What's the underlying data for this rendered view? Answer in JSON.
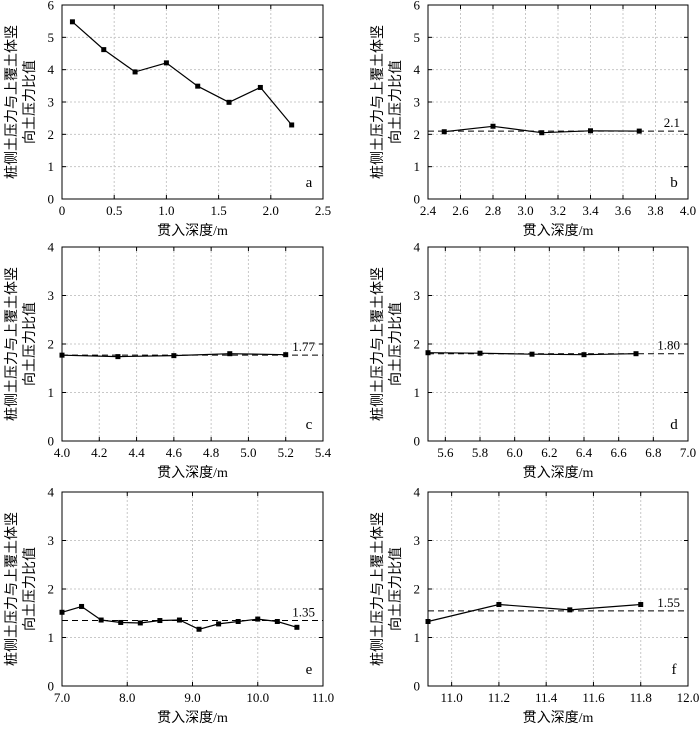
{
  "chart_data": [
    {
      "type": "line",
      "panel_label": "a",
      "xlabel": "贯入深度/m",
      "ylabel": "桩侧土压力与上覆土体竖向土压力比值",
      "xlim": [
        0,
        2.5
      ],
      "ylim": [
        0,
        6
      ],
      "xticks": [
        "0",
        "0.5",
        "1.0",
        "1.5",
        "2.0",
        "2.5"
      ],
      "yticks": [
        "0",
        "1",
        "2",
        "3",
        "4",
        "5",
        "6"
      ],
      "xtick_values": [
        0,
        0.5,
        1.0,
        1.5,
        2.0,
        2.5
      ],
      "ytick_values": [
        0,
        1,
        2,
        3,
        4,
        5,
        6
      ],
      "grid": true,
      "x": [
        0.1,
        0.4,
        0.7,
        1.0,
        1.3,
        1.6,
        1.9,
        2.2
      ],
      "y": [
        5.48,
        4.62,
        3.93,
        4.21,
        3.49,
        2.99,
        3.45,
        2.29
      ],
      "reference_line": null,
      "reference_label": ""
    },
    {
      "type": "line",
      "panel_label": "b",
      "xlabel": "贯入深度/m",
      "ylabel": "桩侧土压力与上覆土体竖向土压力比值",
      "xlim": [
        2.4,
        4.0
      ],
      "ylim": [
        0,
        6
      ],
      "xticks": [
        "2.4",
        "2.6",
        "2.8",
        "3.0",
        "3.2",
        "3.4",
        "3.6",
        "3.8",
        "4.0"
      ],
      "yticks": [
        "0",
        "1",
        "2",
        "3",
        "4",
        "5",
        "6"
      ],
      "xtick_values": [
        2.4,
        2.6,
        2.8,
        3.0,
        3.2,
        3.4,
        3.6,
        3.8,
        4.0
      ],
      "ytick_values": [
        0,
        1,
        2,
        3,
        4,
        5,
        6
      ],
      "grid": true,
      "x": [
        2.5,
        2.8,
        3.1,
        3.4,
        3.7
      ],
      "y": [
        2.08,
        2.25,
        2.05,
        2.11,
        2.1
      ],
      "reference_line": 2.1,
      "reference_label": "2.1"
    },
    {
      "type": "line",
      "panel_label": "c",
      "xlabel": "贯入深度/m",
      "ylabel": "桩侧土压力与上覆土体竖向土压力比值",
      "xlim": [
        4.0,
        5.4
      ],
      "ylim": [
        0,
        4
      ],
      "xticks": [
        "4.0",
        "4.2",
        "4.4",
        "4.6",
        "4.8",
        "5.0",
        "5.2",
        "5.4"
      ],
      "yticks": [
        "0",
        "1",
        "2",
        "3",
        "4"
      ],
      "xtick_values": [
        4.0,
        4.2,
        4.4,
        4.6,
        4.8,
        5.0,
        5.2,
        5.4
      ],
      "ytick_values": [
        0,
        1,
        2,
        3,
        4
      ],
      "grid": true,
      "x": [
        4.0,
        4.3,
        4.6,
        4.9,
        5.2
      ],
      "y": [
        1.77,
        1.74,
        1.76,
        1.8,
        1.78
      ],
      "reference_line": 1.77,
      "reference_label": "1.77"
    },
    {
      "type": "line",
      "panel_label": "d",
      "xlabel": "贯入深度/m",
      "ylabel": "桩侧土压力与上覆土体竖向土压力比值",
      "xlim": [
        5.5,
        7.0
      ],
      "ylim": [
        0,
        4
      ],
      "xticks": [
        "5.6",
        "5.8",
        "6.0",
        "6.2",
        "6.4",
        "6.6",
        "6.8",
        "7.0"
      ],
      "yticks": [
        "0",
        "1",
        "2",
        "3",
        "4"
      ],
      "xtick_values": [
        5.6,
        5.8,
        6.0,
        6.2,
        6.4,
        6.6,
        6.8,
        7.0
      ],
      "ytick_values": [
        0,
        1,
        2,
        3,
        4
      ],
      "grid": true,
      "x": [
        5.5,
        5.8,
        6.1,
        6.4,
        6.7
      ],
      "y": [
        1.82,
        1.81,
        1.79,
        1.78,
        1.8
      ],
      "reference_line": 1.8,
      "reference_label": "1.80"
    },
    {
      "type": "line",
      "panel_label": "e",
      "xlabel": "贯入深度/m",
      "ylabel": "桩侧土压力与上覆土体竖向土压力比值",
      "xlim": [
        7.0,
        11.0
      ],
      "ylim": [
        0,
        4
      ],
      "xticks": [
        "7.0",
        "8.0",
        "9.0",
        "10.0",
        "11.0"
      ],
      "yticks": [
        "0",
        "1",
        "2",
        "3",
        "4"
      ],
      "xtick_values": [
        7.0,
        8.0,
        9.0,
        10.0,
        11.0
      ],
      "ytick_values": [
        0,
        1,
        2,
        3,
        4
      ],
      "grid": true,
      "x": [
        7.0,
        7.3,
        7.6,
        7.9,
        8.2,
        8.5,
        8.8,
        9.1,
        9.4,
        9.7,
        10.0,
        10.3,
        10.6
      ],
      "y": [
        1.52,
        1.64,
        1.36,
        1.31,
        1.3,
        1.35,
        1.36,
        1.17,
        1.28,
        1.33,
        1.38,
        1.33,
        1.21
      ],
      "reference_line": 1.35,
      "reference_label": "1.35"
    },
    {
      "type": "line",
      "panel_label": "f",
      "xlabel": "贯入深度/m",
      "ylabel": "桩侧土压力与上覆土体竖向土压力比值",
      "xlim": [
        10.9,
        12.0
      ],
      "ylim": [
        0,
        4
      ],
      "xticks": [
        "11.0",
        "11.2",
        "11.4",
        "11.6",
        "11.8",
        "12.0"
      ],
      "yticks": [
        "0",
        "1",
        "2",
        "3",
        "4"
      ],
      "xtick_values": [
        11.0,
        11.2,
        11.4,
        11.6,
        11.8,
        12.0
      ],
      "ytick_values": [
        0,
        1,
        2,
        3,
        4
      ],
      "grid": true,
      "x": [
        10.9,
        11.2,
        11.5,
        11.8
      ],
      "y": [
        1.33,
        1.68,
        1.57,
        1.68
      ],
      "reference_line": 1.55,
      "reference_label": "1.55"
    }
  ]
}
